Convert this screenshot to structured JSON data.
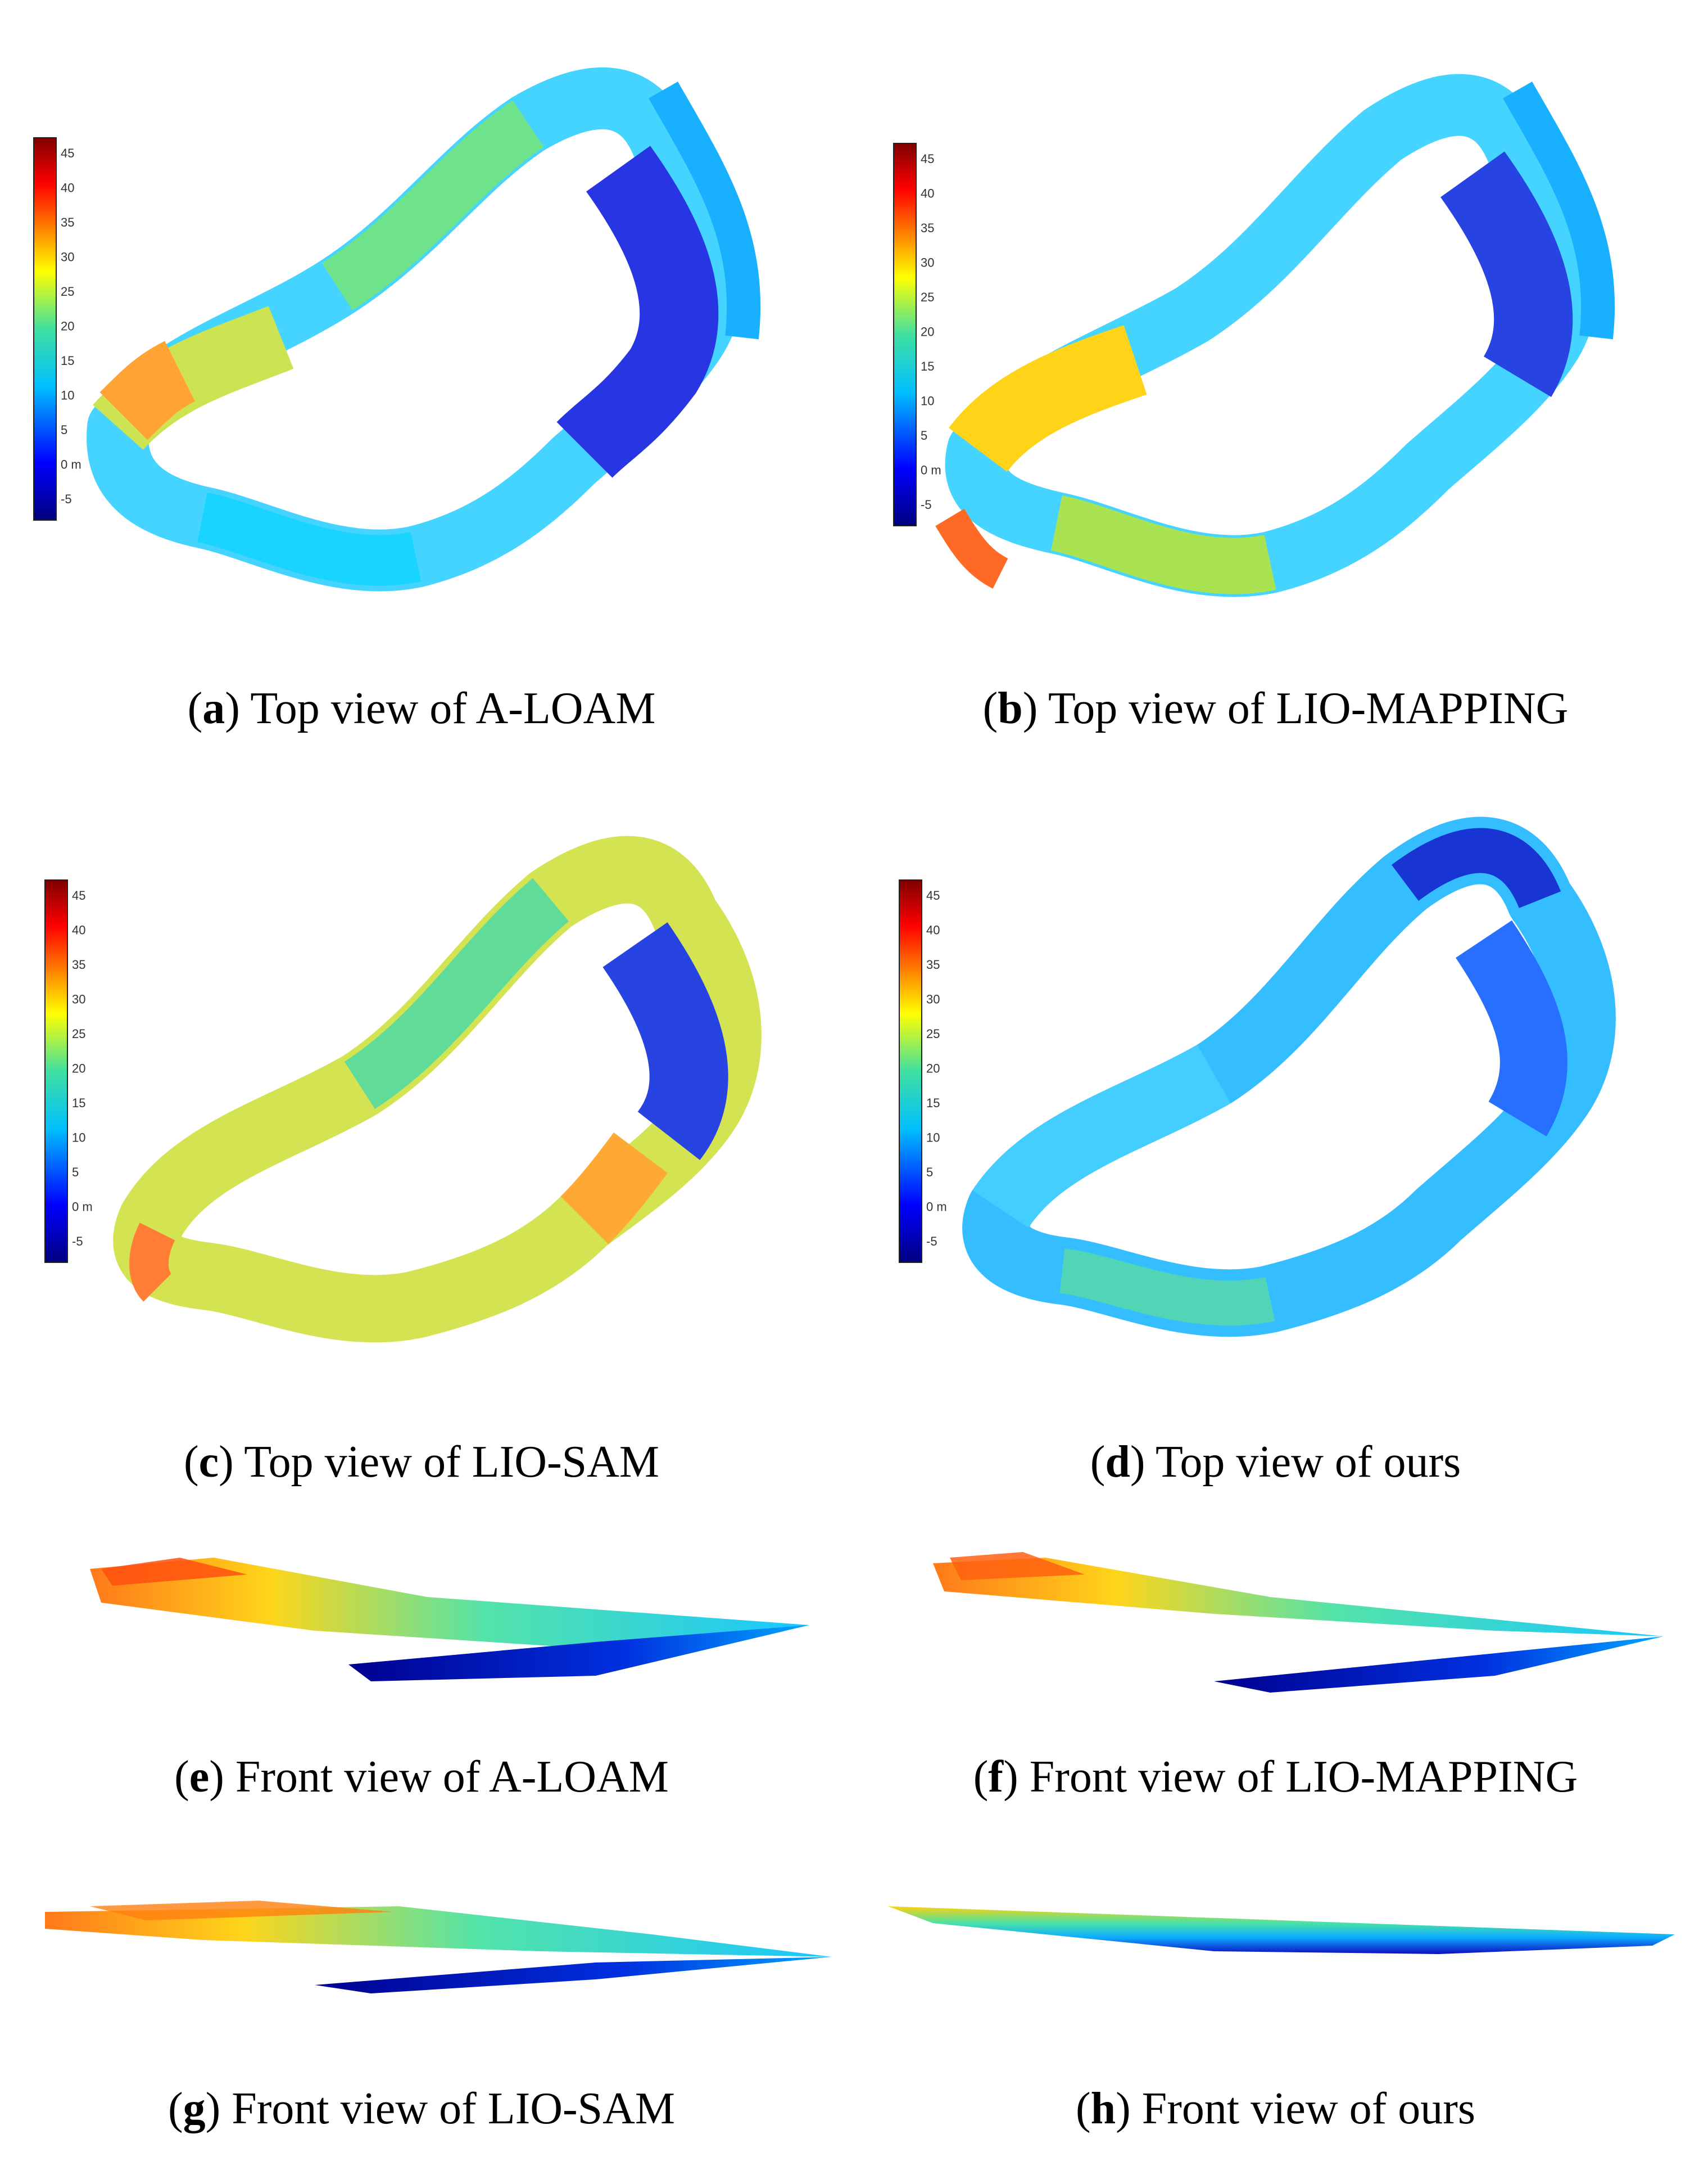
{
  "colorbar": {
    "ticks": [
      "45",
      "40",
      "35",
      "30",
      "25",
      "20",
      "15",
      "10",
      "5",
      "0 m",
      "-5"
    ]
  },
  "panels": [
    {
      "letter": "a",
      "caption": " Top view of A-LOAM"
    },
    {
      "letter": "b",
      "caption": " Top view of LIO-MAPPING"
    },
    {
      "letter": "c",
      "caption": " Top view of LIO-SAM"
    },
    {
      "letter": "d",
      "caption": " Top view of ours"
    },
    {
      "letter": "e",
      "caption": " Front view of A-LOAM"
    },
    {
      "letter": "f",
      "caption": " Front view of LIO-MAPPING"
    },
    {
      "letter": "g",
      "caption": " Front view of LIO-SAM"
    },
    {
      "letter": "h",
      "caption": " Front view of ours"
    }
  ]
}
